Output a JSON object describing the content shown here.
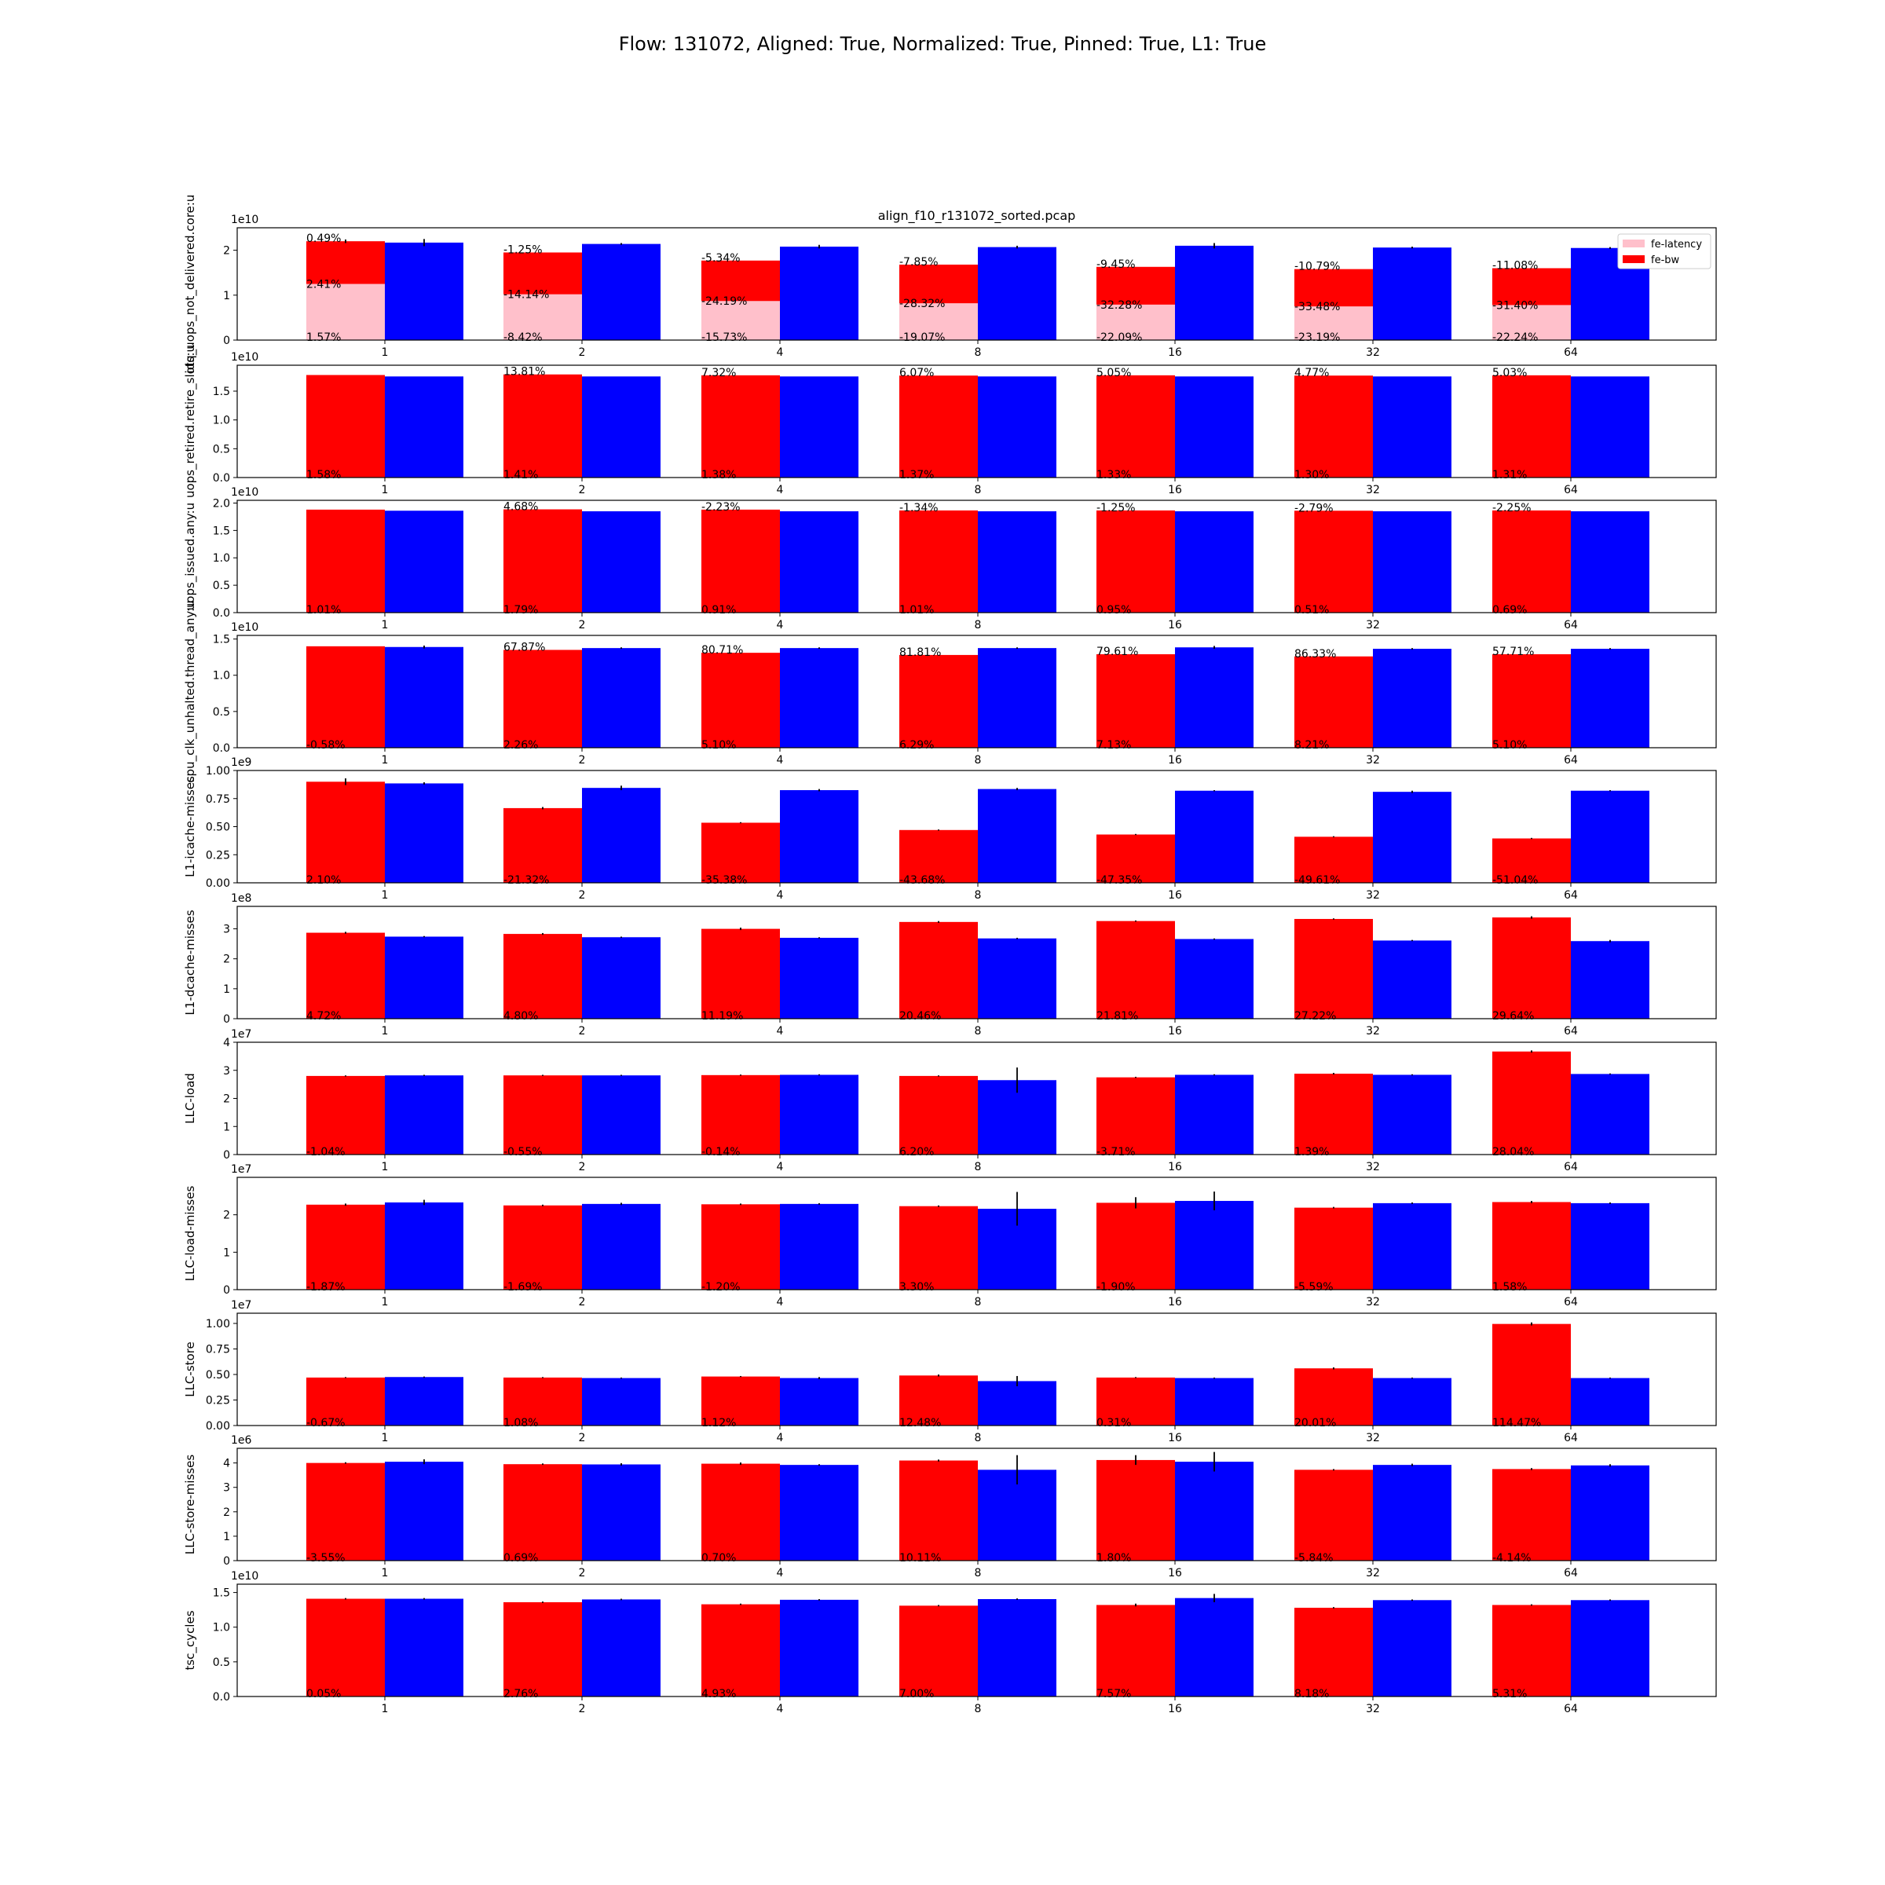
{
  "suptitle": "Flow: 131072, Aligned: True, Normalized: True, Pinned: True, L1: True",
  "colors": {
    "fe_latency": "#ffc0cb",
    "fe_bw": "#ff0000",
    "blue": "#0000ff",
    "error_bar": "#000000"
  },
  "chart_data": [
    {
      "type": "bar",
      "title": "align_f10_r131072_sorted.pcap",
      "ylabel": "idq_uops_not_delivered.core:u",
      "exponent_label": "1e10",
      "scale": 10000000000.0,
      "ylim": [
        0,
        2.5
      ],
      "yticks": [
        0,
        1,
        2
      ],
      "categories": [
        "1",
        "2",
        "4",
        "8",
        "16",
        "32",
        "64"
      ],
      "legend": {
        "placement": "top-right",
        "entries": [
          "fe-latency",
          "fe-bw"
        ]
      },
      "series": [
        {
          "name": "fe-latency",
          "values": [
            1.25,
            1.02,
            0.87,
            0.82,
            0.79,
            0.75,
            0.78
          ]
        },
        {
          "name": "fe-bw",
          "values": [
            2.2,
            1.95,
            1.77,
            1.68,
            1.63,
            1.58,
            1.6
          ],
          "err": [
            0.04,
            0,
            0,
            0,
            0,
            0,
            0
          ]
        },
        {
          "values": [
            2.17,
            2.14,
            2.08,
            2.07,
            2.1,
            2.06,
            2.05
          ],
          "err": [
            0.08,
            0.02,
            0.04,
            0.03,
            0.06,
            0.02,
            0.02
          ]
        }
      ],
      "annotations": [
        [
          "0.49%",
          "2.41%",
          "1.57%"
        ],
        [
          "-1.25%",
          "-14.14%",
          "-8.42%"
        ],
        [
          "-5.34%",
          "-24.19%",
          "-15.73%"
        ],
        [
          "-7.85%",
          "-28.32%",
          "-19.07%"
        ],
        [
          "-9.45%",
          "-32.28%",
          "-22.09%"
        ],
        [
          "-10.79%",
          "-33.48%",
          "-23.19%"
        ],
        [
          "-11.08%",
          "-31.40%",
          "-22.24%"
        ]
      ]
    },
    {
      "type": "bar",
      "ylabel": "uops_retired.retire_slots:u",
      "exponent_label": "1e10",
      "scale": 10000000000.0,
      "ylim": [
        0,
        1.95
      ],
      "yticks": [
        0,
        0.5,
        1.0,
        1.5
      ],
      "categories": [
        "1",
        "2",
        "4",
        "8",
        "16",
        "32",
        "64"
      ],
      "series": [
        {
          "values": [
            1.78,
            1.79,
            1.775,
            1.77,
            1.775,
            1.77,
            1.775
          ]
        },
        {
          "values": [
            1.755,
            1.755,
            1.755,
            1.755,
            1.755,
            1.755,
            1.755
          ]
        }
      ],
      "annotations": [
        [
          "",
          "1.58%"
        ],
        [
          "13.81%",
          "1.41%"
        ],
        [
          "7.32%",
          "1.38%"
        ],
        [
          "6.07%",
          "1.37%"
        ],
        [
          "5.05%",
          "1.33%"
        ],
        [
          "4.77%",
          "1.30%"
        ],
        [
          "5.03%",
          "1.31%"
        ]
      ]
    },
    {
      "type": "bar",
      "ylabel": "uops_issued.any:u",
      "exponent_label": "1e10",
      "scale": 10000000000.0,
      "ylim": [
        0,
        2.05
      ],
      "yticks": [
        0,
        0.5,
        1.0,
        1.5,
        2.0
      ],
      "categories": [
        "1",
        "2",
        "4",
        "8",
        "16",
        "32",
        "64"
      ],
      "series": [
        {
          "values": [
            1.88,
            1.885,
            1.88,
            1.865,
            1.865,
            1.86,
            1.865
          ]
        },
        {
          "values": [
            1.86,
            1.85,
            1.85,
            1.85,
            1.85,
            1.85,
            1.85
          ]
        }
      ],
      "annotations": [
        [
          "",
          "1.01%"
        ],
        [
          "4.68%",
          "1.79%"
        ],
        [
          "-2.23%",
          "0.91%"
        ],
        [
          "-1.34%",
          "1.01%"
        ],
        [
          "-1.25%",
          "0.95%"
        ],
        [
          "-2.79%",
          "0.51%"
        ],
        [
          "-2.25%",
          "0.69%"
        ]
      ]
    },
    {
      "type": "bar",
      "ylabel": "cpu_clk_unhalted.thread_any:u",
      "exponent_label": "1e10",
      "scale": 10000000000.0,
      "ylim": [
        0,
        1.55
      ],
      "yticks": [
        0,
        0.5,
        1.0,
        1.5
      ],
      "categories": [
        "1",
        "2",
        "4",
        "8",
        "16",
        "32",
        "64"
      ],
      "series": [
        {
          "values": [
            1.4,
            1.35,
            1.31,
            1.28,
            1.29,
            1.26,
            1.29
          ],
          "err": [
            0,
            0,
            0,
            0,
            0,
            0,
            0
          ]
        },
        {
          "values": [
            1.39,
            1.375,
            1.375,
            1.375,
            1.385,
            1.365,
            1.365
          ],
          "err": [
            0.02,
            0.01,
            0.01,
            0.01,
            0.02,
            0.01,
            0.01
          ]
        }
      ],
      "annotations": [
        [
          "",
          "-0.58%"
        ],
        [
          "67.87%",
          "2.26%"
        ],
        [
          "80.71%",
          "5.10%"
        ],
        [
          "81.81%",
          "6.29%"
        ],
        [
          "79.61%",
          "7.13%"
        ],
        [
          "86.33%",
          "8.21%"
        ],
        [
          "57.71%",
          "5.10%"
        ]
      ]
    },
    {
      "type": "bar",
      "ylabel": "L1-icache-misses",
      "exponent_label": "1e9",
      "scale": 1000000000.0,
      "ylim": [
        0,
        1.0
      ],
      "yticks": [
        0,
        0.25,
        0.5,
        0.75,
        1.0
      ],
      "categories": [
        "1",
        "2",
        "4",
        "8",
        "16",
        "32",
        "64"
      ],
      "series": [
        {
          "values": [
            0.9,
            0.665,
            0.535,
            0.47,
            0.43,
            0.41,
            0.395
          ],
          "err": [
            0.03,
            0.01,
            0.005,
            0.005,
            0.005,
            0.005,
            0.005
          ]
        },
        {
          "values": [
            0.885,
            0.845,
            0.825,
            0.835,
            0.82,
            0.81,
            0.82
          ],
          "err": [
            0.01,
            0.02,
            0.01,
            0.01,
            0.005,
            0.01,
            0.005
          ]
        }
      ],
      "annotations": [
        [
          "",
          "2.10%"
        ],
        [
          "",
          "-21.32%"
        ],
        [
          "",
          "-35.38%"
        ],
        [
          "",
          "-43.68%"
        ],
        [
          "",
          "-47.35%"
        ],
        [
          "",
          "-49.61%"
        ],
        [
          "",
          "-51.04%"
        ]
      ]
    },
    {
      "type": "bar",
      "ylabel": "L1-dcache-misses",
      "exponent_label": "1e8",
      "scale": 100000000.0,
      "ylim": [
        0,
        3.75
      ],
      "yticks": [
        0,
        1,
        2,
        3
      ],
      "categories": [
        "1",
        "2",
        "4",
        "8",
        "16",
        "32",
        "64"
      ],
      "series": [
        {
          "values": [
            2.87,
            2.83,
            3.0,
            3.23,
            3.26,
            3.33,
            3.38
          ],
          "err": [
            0.03,
            0.03,
            0.04,
            0.03,
            0.02,
            0.02,
            0.04
          ]
        },
        {
          "values": [
            2.74,
            2.72,
            2.7,
            2.68,
            2.66,
            2.61,
            2.59
          ],
          "err": [
            0.02,
            0.02,
            0.02,
            0.02,
            0.02,
            0.02,
            0.04
          ]
        }
      ],
      "annotations": [
        [
          "",
          "4.72%"
        ],
        [
          "",
          "4.80%"
        ],
        [
          "",
          "11.19%"
        ],
        [
          "",
          "20.46%"
        ],
        [
          "",
          "21.81%"
        ],
        [
          "",
          "27.22%"
        ],
        [
          "",
          "29.64%"
        ]
      ]
    },
    {
      "type": "bar",
      "ylabel": "LLC-load",
      "exponent_label": "1e7",
      "scale": 10000000.0,
      "ylim": [
        0,
        4.0
      ],
      "yticks": [
        0,
        1,
        2,
        3,
        4
      ],
      "categories": [
        "1",
        "2",
        "4",
        "8",
        "16",
        "32",
        "64"
      ],
      "series": [
        {
          "values": [
            2.8,
            2.82,
            2.83,
            2.8,
            2.75,
            2.88,
            3.67
          ],
          "err": [
            0.02,
            0.02,
            0.02,
            0.02,
            0.02,
            0.03,
            0.04
          ]
        },
        {
          "values": [
            2.82,
            2.82,
            2.84,
            2.65,
            2.84,
            2.84,
            2.87
          ],
          "err": [
            0.02,
            0.02,
            0.02,
            0.45,
            0.02,
            0.02,
            0.02
          ]
        }
      ],
      "annotations": [
        [
          "",
          "-1.04%"
        ],
        [
          "",
          "-0.55%"
        ],
        [
          "",
          "-0.14%"
        ],
        [
          "",
          "6.20%"
        ],
        [
          "",
          "-3.71%"
        ],
        [
          "",
          "1.39%"
        ],
        [
          "",
          "28.04%"
        ]
      ]
    },
    {
      "type": "bar",
      "ylabel": "LLC-load-misses",
      "exponent_label": "1e7",
      "scale": 10000000.0,
      "ylim": [
        0,
        3.0
      ],
      "yticks": [
        0,
        1,
        2
      ],
      "categories": [
        "1",
        "2",
        "4",
        "8",
        "16",
        "32",
        "64"
      ],
      "series": [
        {
          "values": [
            2.27,
            2.25,
            2.28,
            2.23,
            2.32,
            2.19,
            2.34
          ],
          "err": [
            0.03,
            0.02,
            0.02,
            0.02,
            0.15,
            0.02,
            0.03
          ]
        },
        {
          "values": [
            2.33,
            2.29,
            2.29,
            2.16,
            2.37,
            2.31,
            2.31
          ],
          "err": [
            0.07,
            0.03,
            0.02,
            0.45,
            0.25,
            0.02,
            0.02
          ]
        }
      ],
      "annotations": [
        [
          "",
          "-1.87%"
        ],
        [
          "",
          "-1.69%"
        ],
        [
          "",
          "-1.20%"
        ],
        [
          "",
          "3.30%"
        ],
        [
          "",
          "-1.90%"
        ],
        [
          "",
          "-5.59%"
        ],
        [
          "",
          "1.58%"
        ]
      ]
    },
    {
      "type": "bar",
      "ylabel": "LLC-store",
      "exponent_label": "1e7",
      "scale": 10000000.0,
      "ylim": [
        0,
        1.1
      ],
      "yticks": [
        0,
        0.25,
        0.5,
        0.75,
        1.0
      ],
      "categories": [
        "1",
        "2",
        "4",
        "8",
        "16",
        "32",
        "64"
      ],
      "series": [
        {
          "values": [
            0.47,
            0.47,
            0.48,
            0.49,
            0.47,
            0.56,
            0.995
          ],
          "err": [
            0.005,
            0.005,
            0.005,
            0.01,
            0.005,
            0.01,
            0.015
          ]
        },
        {
          "values": [
            0.475,
            0.465,
            0.465,
            0.435,
            0.465,
            0.465,
            0.465
          ],
          "err": [
            0.005,
            0.005,
            0.01,
            0.05,
            0.005,
            0.005,
            0.005
          ]
        }
      ],
      "annotations": [
        [
          "",
          "-0.67%"
        ],
        [
          "",
          "1.08%"
        ],
        [
          "",
          "1.12%"
        ],
        [
          "",
          "12.48%"
        ],
        [
          "",
          "0.31%"
        ],
        [
          "",
          "20.01%"
        ],
        [
          "",
          "114.47%"
        ]
      ]
    },
    {
      "type": "bar",
      "ylabel": "LLC-store-misses",
      "exponent_label": "1e6",
      "scale": 1000000.0,
      "ylim": [
        0,
        4.6
      ],
      "yticks": [
        0,
        1,
        2,
        3,
        4
      ],
      "categories": [
        "1",
        "2",
        "4",
        "8",
        "16",
        "32",
        "64"
      ],
      "series": [
        {
          "values": [
            4.0,
            3.95,
            3.97,
            4.1,
            4.12,
            3.72,
            3.75
          ],
          "err": [
            0.03,
            0.03,
            0.05,
            0.04,
            0.2,
            0.03,
            0.04
          ]
        },
        {
          "values": [
            4.05,
            3.94,
            3.92,
            3.72,
            4.05,
            3.92,
            3.9
          ],
          "err": [
            0.1,
            0.05,
            0.03,
            0.6,
            0.4,
            0.05,
            0.05
          ]
        }
      ],
      "annotations": [
        [
          "",
          "-3.55%"
        ],
        [
          "",
          "0.69%"
        ],
        [
          "",
          "0.70%"
        ],
        [
          "",
          "10.11%"
        ],
        [
          "",
          "1.80%"
        ],
        [
          "",
          "-5.84%"
        ],
        [
          "",
          "-4.14%"
        ]
      ]
    },
    {
      "type": "bar",
      "ylabel": "tsc_cycles",
      "exponent_label": "1e10",
      "scale": 10000000000.0,
      "ylim": [
        0,
        1.62
      ],
      "yticks": [
        0,
        0.5,
        1.0,
        1.5
      ],
      "categories": [
        "1",
        "2",
        "4",
        "8",
        "16",
        "32",
        "64"
      ],
      "series": [
        {
          "values": [
            1.41,
            1.36,
            1.33,
            1.31,
            1.32,
            1.28,
            1.32
          ],
          "err": [
            0.01,
            0.01,
            0.01,
            0.01,
            0.02,
            0.01,
            0.01
          ]
        },
        {
          "values": [
            1.41,
            1.4,
            1.395,
            1.405,
            1.42,
            1.39,
            1.39
          ],
          "err": [
            0.01,
            0.01,
            0.01,
            0.01,
            0.06,
            0.01,
            0.01
          ]
        }
      ],
      "annotations": [
        [
          "",
          "0.05%"
        ],
        [
          "",
          "2.76%"
        ],
        [
          "",
          "4.93%"
        ],
        [
          "",
          "7.00%"
        ],
        [
          "",
          "7.57%"
        ],
        [
          "",
          "8.18%"
        ],
        [
          "",
          "5.31%"
        ]
      ]
    }
  ]
}
